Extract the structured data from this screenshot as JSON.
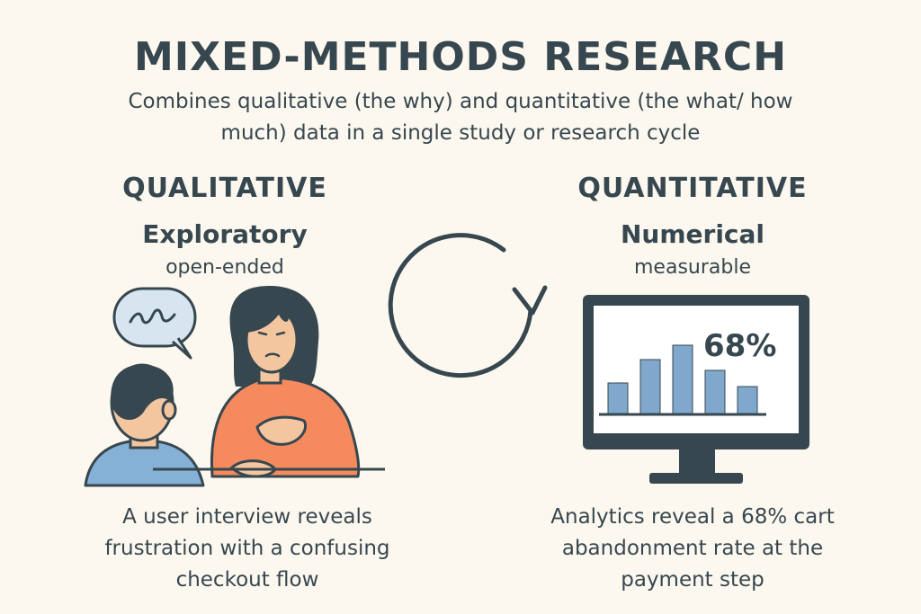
{
  "title": "MIXED-METHODS RESEARCH",
  "subtitle": "Combines qualitative (the why) and quantitative (the what/ how much) data in a single study or research cycle",
  "qualitative": {
    "heading": "QUALITATIVE",
    "label": "Exploratory",
    "sublabel": "open-ended",
    "caption": "A user interview reveals frustration with a confusing checkout flow"
  },
  "quantitative": {
    "heading": "QUANTITATIVE",
    "label": "Numerical",
    "sublabel": "measurable",
    "stat": "68%",
    "caption": "Analytics reveal a 68% cart abandonment rate at the payment step"
  },
  "colors": {
    "background": "#fcf8ef",
    "text": "#37474f",
    "bars": "#7fa8cc",
    "shirt": "#f58a5e",
    "bubble": "#d6e5ef"
  },
  "icons": [
    "speech-bubble-icon",
    "cycle-arrow-icon",
    "monitor-icon"
  ]
}
